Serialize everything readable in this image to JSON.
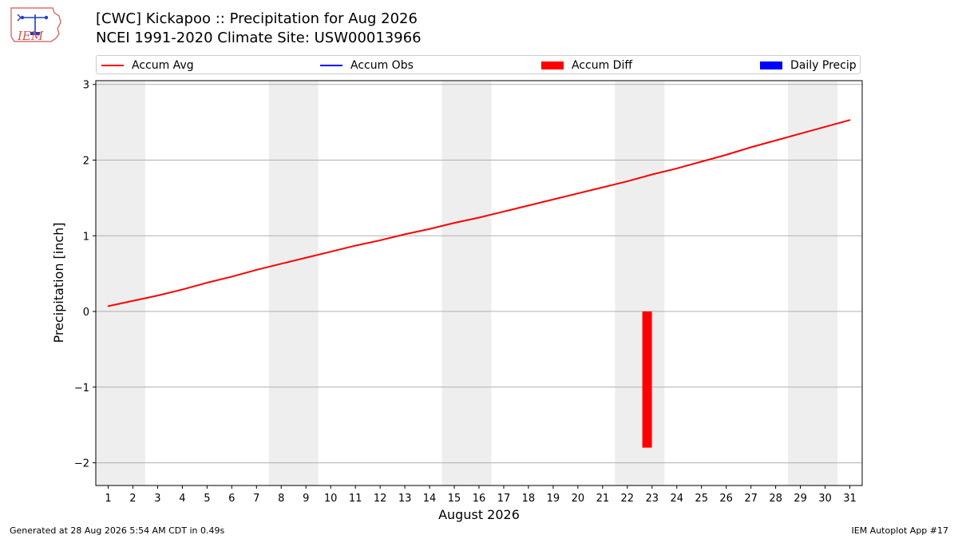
{
  "header": {
    "title_line1": "[CWC] Kickapoo :: Precipitation for Aug 2026",
    "title_line2": "NCEI 1991-2020 Climate Site: USW00013966",
    "logo_text": "IEM"
  },
  "footer": {
    "left": "Generated at 28 Aug 2026 5:54 AM CDT in 0.49s",
    "right": "IEM Autoplot App #17"
  },
  "colors": {
    "accum_avg": "#ff0000",
    "accum_obs": "#0000ff",
    "accum_diff": "#ff0000",
    "daily_precip": "#0000ff",
    "weekend_shade": "#eeeeee",
    "grid": "#b0b0b0"
  },
  "chart_data": {
    "type": "line",
    "xlabel": "August 2026",
    "ylabel": "Precipitation [inch]",
    "xlim": [
      0.5,
      31.5
    ],
    "ylim": [
      -2.3,
      3.05
    ],
    "yticks": [
      -2,
      -1,
      0,
      1,
      2,
      3
    ],
    "ytick_labels": [
      "−2",
      "−1",
      "0",
      "1",
      "2",
      "3"
    ],
    "x": [
      1,
      2,
      3,
      4,
      5,
      6,
      7,
      8,
      9,
      10,
      11,
      12,
      13,
      14,
      15,
      16,
      17,
      18,
      19,
      20,
      21,
      22,
      23,
      24,
      25,
      26,
      27,
      28,
      29,
      30,
      31
    ],
    "weekend_spans": [
      [
        0.5,
        2.5
      ],
      [
        7.5,
        9.5
      ],
      [
        14.5,
        16.5
      ],
      [
        21.5,
        23.5
      ],
      [
        28.5,
        30.5
      ]
    ],
    "grid": "horizontal",
    "legend_placement": "top",
    "legend": [
      "Accum Avg",
      "Accum Obs",
      "Accum Diff",
      "Daily Precip"
    ],
    "series": [
      {
        "name": "Accum Avg",
        "type": "line",
        "x": [
          1,
          2,
          3,
          4,
          5,
          6,
          7,
          8,
          9,
          10,
          11,
          12,
          13,
          14,
          15,
          16,
          17,
          18,
          19,
          20,
          21,
          22,
          23,
          24,
          25,
          26,
          27,
          28,
          29,
          30,
          31
        ],
        "values": [
          0.07,
          0.14,
          0.21,
          0.29,
          0.38,
          0.46,
          0.55,
          0.63,
          0.71,
          0.79,
          0.87,
          0.94,
          1.02,
          1.09,
          1.17,
          1.24,
          1.32,
          1.4,
          1.48,
          1.56,
          1.64,
          1.72,
          1.81,
          1.89,
          1.98,
          2.07,
          2.17,
          2.26,
          2.35,
          2.44,
          2.53
        ]
      },
      {
        "name": "Accum Obs",
        "type": "line",
        "x": [],
        "values": []
      },
      {
        "name": "Accum Diff",
        "type": "bar",
        "x": [
          22.8
        ],
        "values": [
          -1.8
        ]
      },
      {
        "name": "Daily Precip",
        "type": "bar",
        "x": [],
        "values": []
      }
    ]
  }
}
